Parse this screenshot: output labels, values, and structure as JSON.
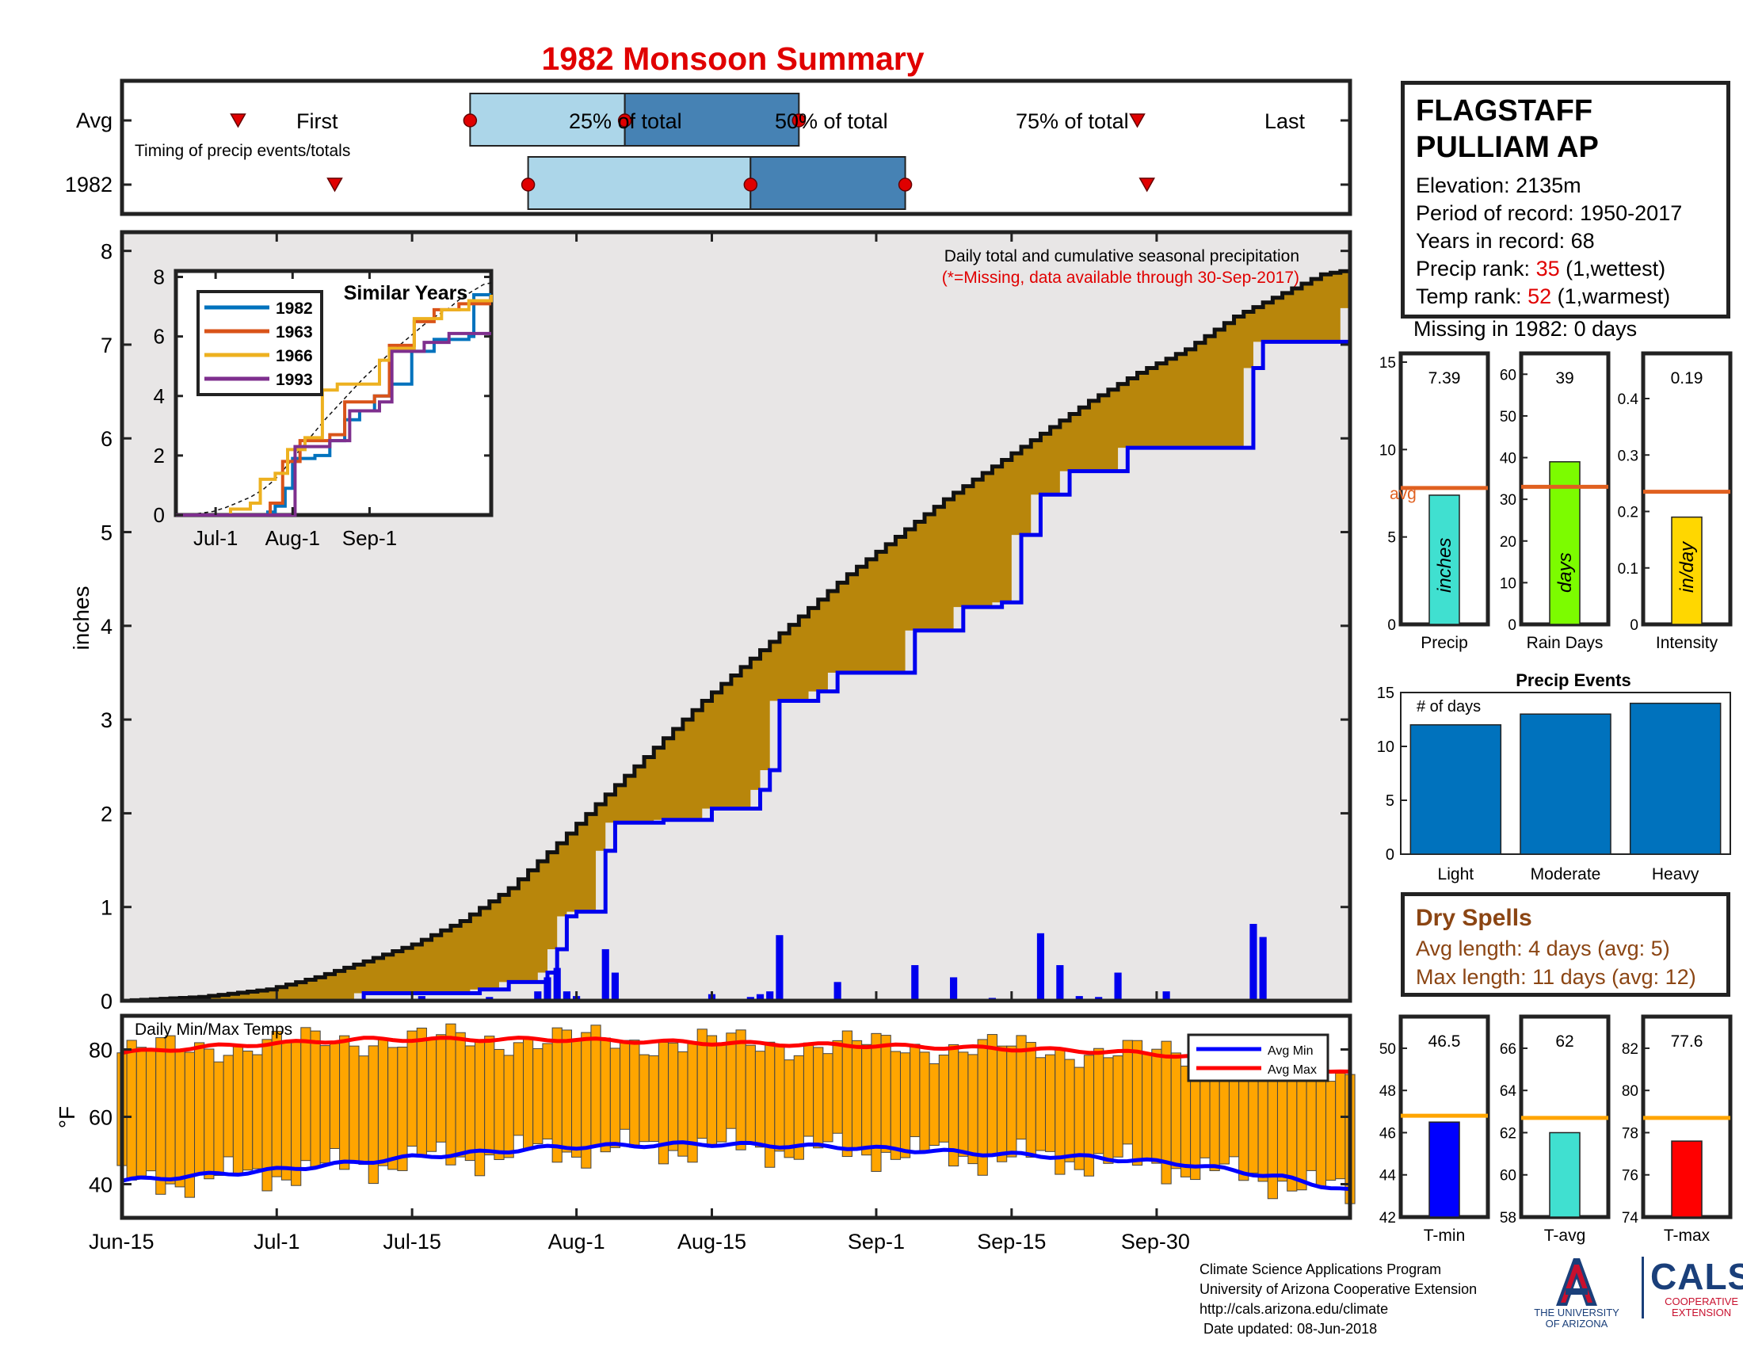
{
  "title": "1982 Monsoon Summary",
  "colors": {
    "title": "#e00000",
    "band_light": "#acd6e9",
    "band_dark": "#4682b4",
    "cum_fill": "#b8860b",
    "cum_bg": "#e8e6e6",
    "bars_blue": "#0000ee",
    "temp_bar": "#ffa500",
    "avg_min": "#0000ff",
    "avg_max": "#ff0000",
    "avg_ref": "#e06020",
    "precip_bar": "#40e0d0",
    "rain_bar": "#7cfc00",
    "intensity_bar": "#ffd700",
    "event_bar": "#0072bd",
    "dry_text": "#8b4513"
  },
  "station": {
    "name_line1": "FLAGSTAFF",
    "name_line2": "PULLIAM AP",
    "elevation": "Elevation: 2135m",
    "period": "Period of record: 1950-2017",
    "years": "Years in record: 68",
    "precip_rank_label": "Precip rank: ",
    "precip_rank_value": "35",
    "precip_rank_note": " (1,wettest)",
    "temp_rank_label": "Temp rank: ",
    "temp_rank_value": "52",
    "temp_rank_note": " (1,warmest)",
    "missing": "Missing in 1982: 0 days"
  },
  "dry_spells": {
    "title": "Dry Spells",
    "avg_length": "Avg length: 4 days (avg: 5)",
    "max_length": "Max length: 11 days (avg: 12)"
  },
  "credits": {
    "line1": "Climate Science Applications Program",
    "line2": "University of Arizona Cooperative Extension",
    "line3": "http://cals.arizona.edu/climate",
    "line4": " Date updated: 08-Jun-2018",
    "ua_name": "THE UNIVERSITY OF ARIZONA",
    "cals": "CALS",
    "cals_sub1": "COOPERATIVE",
    "cals_sub2": "EXTENSION"
  },
  "chart_data": [
    {
      "id": "timing",
      "type": "bar",
      "subtitle": "Timing of precip events/totals",
      "rows": [
        "Avg",
        "1982"
      ],
      "labels": {
        "first": "First",
        "p25": "25% of total",
        "p50": "50% of total",
        "p75": "75% of total",
        "last": "Last"
      },
      "avg": {
        "first": "Jun-27",
        "p25": "Jul-21",
        "p50": "Aug-6",
        "p75": "Aug-24",
        "last": "Sep-28"
      },
      "y1982": {
        "first": "Jul-7",
        "p25": "Jul-27",
        "p50": "Aug-19",
        "p75": "Sep-4",
        "last": "Sep-29"
      }
    },
    {
      "id": "cumulative",
      "type": "area",
      "subtitle": "Daily total and cumulative seasonal precipitation",
      "note": "(*=Missing, data available through 30-Sep-2017)",
      "ylabel": "inches",
      "ylim": [
        0,
        8.2
      ],
      "yticks": [
        0,
        1,
        2,
        3,
        4,
        5,
        6,
        7,
        8
      ],
      "xticks": [
        "Jun-15",
        "Jul-1",
        "Jul-15",
        "Aug-1",
        "Aug-15",
        "Sep-1",
        "Sep-15",
        "Sep-30"
      ],
      "avg_cumulative": [
        [
          0,
          0
        ],
        [
          8,
          0.04
        ],
        [
          15,
          0.12
        ],
        [
          20,
          0.25
        ],
        [
          25,
          0.42
        ],
        [
          30,
          0.6
        ],
        [
          35,
          0.85
        ],
        [
          40,
          1.2
        ],
        [
          45,
          1.68
        ],
        [
          50,
          2.2
        ],
        [
          55,
          2.7
        ],
        [
          60,
          3.2
        ],
        [
          65,
          3.65
        ],
        [
          70,
          4.1
        ],
        [
          75,
          4.55
        ],
        [
          80,
          4.95
        ],
        [
          85,
          5.35
        ],
        [
          90,
          5.7
        ],
        [
          95,
          6.05
        ],
        [
          100,
          6.4
        ],
        [
          105,
          6.7
        ],
        [
          110,
          6.95
        ],
        [
          115,
          7.3
        ],
        [
          120,
          7.55
        ],
        [
          124,
          7.75
        ],
        [
          127,
          7.8
        ]
      ],
      "series_1982_cumulative": [
        [
          0,
          0
        ],
        [
          25,
          0.08
        ],
        [
          37,
          0.12
        ],
        [
          40,
          0.2
        ],
        [
          44,
          0.3
        ],
        [
          45,
          0.55
        ],
        [
          46,
          0.9
        ],
        [
          47,
          0.95
        ],
        [
          50,
          1.6
        ],
        [
          51,
          1.9
        ],
        [
          56,
          1.93
        ],
        [
          61,
          2.05
        ],
        [
          66,
          2.25
        ],
        [
          67,
          2.46
        ],
        [
          68,
          3.2
        ],
        [
          72,
          3.3
        ],
        [
          74,
          3.5
        ],
        [
          82,
          3.95
        ],
        [
          87,
          4.2
        ],
        [
          91,
          4.25
        ],
        [
          93,
          4.97
        ],
        [
          95,
          5.4
        ],
        [
          98,
          5.65
        ],
        [
          104,
          5.9
        ],
        [
          117,
          6.75
        ],
        [
          118,
          7.03
        ],
        [
          127,
          7.39
        ]
      ],
      "daily_1982": [
        [
          25,
          0.02
        ],
        [
          31,
          0.05
        ],
        [
          38,
          0.04
        ],
        [
          40,
          0.02
        ],
        [
          43,
          0.1
        ],
        [
          44,
          0.25
        ],
        [
          45,
          0.35
        ],
        [
          46,
          0.1
        ],
        [
          47,
          0.05
        ],
        [
          50,
          0.55
        ],
        [
          51,
          0.3
        ],
        [
          61,
          0.07
        ],
        [
          65,
          0.04
        ],
        [
          66,
          0.07
        ],
        [
          67,
          0.1
        ],
        [
          68,
          0.7
        ],
        [
          72,
          0.02
        ],
        [
          74,
          0.2
        ],
        [
          82,
          0.38
        ],
        [
          86,
          0.25
        ],
        [
          90,
          0.03
        ],
        [
          95,
          0.72
        ],
        [
          97,
          0.38
        ],
        [
          99,
          0.05
        ],
        [
          101,
          0.04
        ],
        [
          103,
          0.3
        ],
        [
          108,
          0.1
        ],
        [
          117,
          0.82
        ],
        [
          118,
          0.68
        ]
      ]
    },
    {
      "id": "similar_years",
      "type": "line",
      "title": "Similar Years",
      "xticks": [
        "Jul-1",
        "Aug-1",
        "Sep-1"
      ],
      "yticks": [
        0,
        2,
        4,
        6,
        8
      ],
      "ylim": [
        0,
        8
      ],
      "series": [
        {
          "name": "1982",
          "color": "#0072bd",
          "points": [
            [
              0,
              0
            ],
            [
              31,
              0
            ],
            [
              37,
              0.1
            ],
            [
              40,
              0.3
            ],
            [
              44,
              0.9
            ],
            [
              47,
              1.9
            ],
            [
              56,
              2
            ],
            [
              62,
              2.5
            ],
            [
              68,
              3.2
            ],
            [
              74,
              3.5
            ],
            [
              80,
              4
            ],
            [
              86,
              4.4
            ],
            [
              95,
              5.5
            ],
            [
              104,
              5.9
            ],
            [
              118,
              6
            ],
            [
              120,
              7.4
            ],
            [
              127,
              7.4
            ]
          ]
        },
        {
          "name": "1963",
          "color": "#d95319",
          "points": [
            [
              0,
              0
            ],
            [
              36,
              0
            ],
            [
              38,
              0.4
            ],
            [
              43,
              1.8
            ],
            [
              50,
              2.5
            ],
            [
              62,
              2.7
            ],
            [
              68,
              3.8
            ],
            [
              80,
              4
            ],
            [
              86,
              5.7
            ],
            [
              96,
              6.5
            ],
            [
              104,
              6.9
            ],
            [
              114,
              7.1
            ],
            [
              127,
              7.1
            ]
          ]
        },
        {
          "name": "1966",
          "color": "#edb120",
          "points": [
            [
              0,
              0
            ],
            [
              18,
              0
            ],
            [
              22,
              0.2
            ],
            [
              30,
              0.4
            ],
            [
              34,
              1.2
            ],
            [
              40,
              1.4
            ],
            [
              45,
              2.2
            ],
            [
              52,
              2.6
            ],
            [
              59,
              4.2
            ],
            [
              65,
              4.4
            ],
            [
              75,
              4.4
            ],
            [
              82,
              5.2
            ],
            [
              86,
              5.6
            ],
            [
              96,
              6.6
            ],
            [
              107,
              6.9
            ],
            [
              118,
              7.2
            ],
            [
              127,
              7.4
            ]
          ]
        },
        {
          "name": "1993",
          "color": "#7e2f8e",
          "points": [
            [
              0,
              0
            ],
            [
              46,
              0
            ],
            [
              48,
              2.3
            ],
            [
              62,
              2.5
            ],
            [
              70,
              3.5
            ],
            [
              82,
              3.8
            ],
            [
              87,
              5.5
            ],
            [
              100,
              5.8
            ],
            [
              110,
              6.1
            ],
            [
              127,
              6.1
            ]
          ]
        }
      ]
    },
    {
      "id": "temps",
      "type": "bar",
      "subtitle": "Daily Min/Max Temps",
      "ylabel": "°F",
      "ylim": [
        30,
        90
      ],
      "yticks": [
        40,
        60,
        80
      ],
      "legend": [
        "Avg Min",
        "Avg Max"
      ],
      "avg_min": [
        [
          0,
          41
        ],
        [
          15,
          44
        ],
        [
          30,
          48
        ],
        [
          45,
          51
        ],
        [
          60,
          52
        ],
        [
          75,
          51
        ],
        [
          90,
          49
        ],
        [
          100,
          48
        ],
        [
          110,
          46
        ],
        [
          120,
          42
        ],
        [
          127,
          38
        ]
      ],
      "avg_max": [
        [
          0,
          79
        ],
        [
          10,
          81
        ],
        [
          25,
          83
        ],
        [
          45,
          83
        ],
        [
          60,
          82
        ],
        [
          80,
          81
        ],
        [
          95,
          80
        ],
        [
          105,
          79
        ],
        [
          115,
          77
        ],
        [
          127,
          73
        ]
      ]
    },
    {
      "id": "summary_precip",
      "type": "bar",
      "categories": [
        "Precip",
        "Rain Days",
        "Intensity"
      ],
      "panels": [
        {
          "label": "Precip",
          "value": 7.39,
          "value_label": "7.39",
          "avg": 7.8,
          "ylim": [
            0,
            15.5
          ],
          "yticks": [
            0,
            5,
            10,
            15
          ],
          "bar_text": "inches",
          "avg_label": "avg"
        },
        {
          "label": "Rain Days",
          "value": 39,
          "value_label": "39",
          "avg": 33,
          "ylim": [
            0,
            65
          ],
          "yticks": [
            0,
            10,
            20,
            30,
            40,
            50,
            60
          ],
          "bar_text": "days"
        },
        {
          "label": "Intensity",
          "value": 0.19,
          "value_label": "0.19",
          "avg": 0.235,
          "ylim": [
            0,
            0.48
          ],
          "yticks": [
            0,
            0.1,
            0.2,
            0.3,
            0.4
          ],
          "bar_text": "in/day"
        }
      ]
    },
    {
      "id": "precip_events",
      "type": "bar",
      "title": "Precip Events",
      "annotation": "# of days",
      "categories": [
        "Light",
        "Moderate",
        "Heavy"
      ],
      "values": [
        12,
        13,
        14
      ],
      "ylim": [
        0,
        15
      ],
      "yticks": [
        0,
        5,
        10,
        15
      ]
    },
    {
      "id": "summary_temps",
      "type": "bar",
      "categories": [
        "T-min",
        "T-avg",
        "T-max"
      ],
      "panels": [
        {
          "label": "T-min",
          "value": 46.5,
          "value_label": "46.5",
          "avg": 46.8,
          "ylim": [
            42,
            51.5
          ],
          "yticks": [
            42,
            44,
            46,
            48,
            50
          ]
        },
        {
          "label": "T-avg",
          "value": 62,
          "value_label": "62",
          "avg": 62.7,
          "ylim": [
            58,
            67.5
          ],
          "yticks": [
            58,
            60,
            62,
            64,
            66
          ]
        },
        {
          "label": "T-max",
          "value": 77.6,
          "value_label": "77.6",
          "avg": 78.7,
          "ylim": [
            74,
            83.5
          ],
          "yticks": [
            74,
            76,
            78,
            80,
            82
          ]
        }
      ]
    }
  ]
}
